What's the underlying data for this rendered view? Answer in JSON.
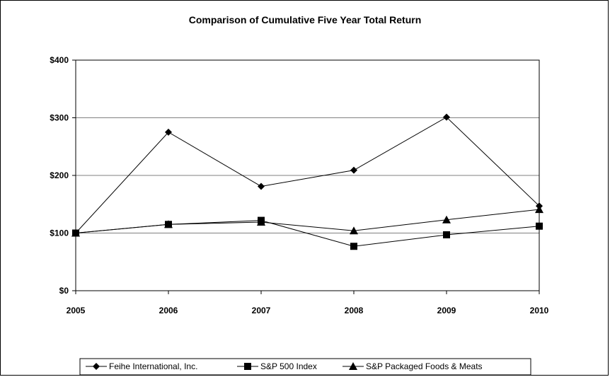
{
  "chart_data": {
    "type": "line",
    "title": "Comparison of Cumulative Five Year Total Return",
    "x": [
      "2005",
      "2006",
      "2007",
      "2008",
      "2009",
      "2010"
    ],
    "ylim": [
      0,
      400
    ],
    "yticks": [
      0,
      100,
      200,
      300,
      400
    ],
    "ytick_labels": [
      "$0",
      "$100",
      "$200",
      "$300",
      "$400"
    ],
    "grid": "horizontal",
    "legend_position": "bottom",
    "series": [
      {
        "name": "Feihe International, Inc.",
        "values": [
          100,
          275,
          181,
          209,
          301,
          147
        ],
        "marker": "diamond",
        "color": "#000000"
      },
      {
        "name": "S&P 500 Index",
        "values": [
          100,
          115,
          122,
          77,
          97,
          112
        ],
        "marker": "square",
        "color": "#000000"
      },
      {
        "name": "S&P Packaged Foods & Meats",
        "values": [
          100,
          115,
          119,
          104,
          123,
          141
        ],
        "marker": "triangle",
        "color": "#000000"
      }
    ]
  }
}
